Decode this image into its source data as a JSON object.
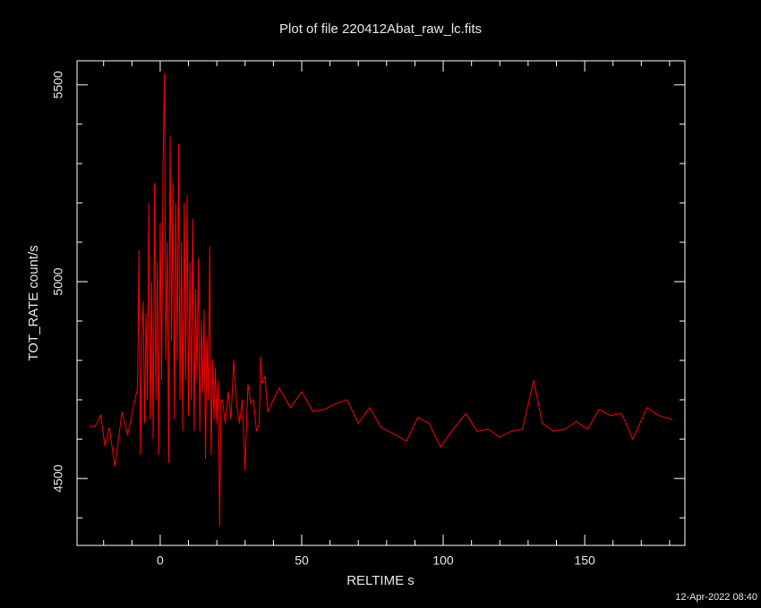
{
  "chart_data": {
    "type": "line",
    "title": "Plot of file 220412Abat_raw_lc.fits",
    "x_label": "RELTIME  s",
    "y_label": "TOT_RATE  count/s",
    "annotation": "12-Apr-2022 08:40",
    "color": "#ff0000",
    "x": [
      -25,
      -23,
      -21,
      -19.5,
      -18,
      -16,
      -13.5,
      -11.5,
      -9.5,
      -8,
      -7.5,
      -7,
      -6.5,
      -6,
      -5.5,
      -5,
      -4.5,
      -4,
      -3.5,
      -3,
      -2.5,
      -2,
      -1.5,
      -1,
      -0.5,
      0,
      0.5,
      1,
      1.5,
      2,
      2.5,
      3,
      3.5,
      4,
      4.5,
      5,
      5.5,
      6,
      6.5,
      7,
      7.5,
      8,
      8.5,
      9,
      9.5,
      10,
      10.5,
      11,
      11.5,
      12,
      12.5,
      13,
      13.5,
      14,
      14.5,
      15,
      15.5,
      16,
      16.5,
      17,
      17.5,
      18,
      18.5,
      19,
      19.5,
      20,
      20.5,
      21,
      21.5,
      22,
      23,
      24,
      25,
      26,
      27,
      28,
      29,
      30,
      30.5,
      31,
      32,
      33,
      34,
      35,
      35.5,
      36,
      37,
      38,
      42,
      46,
      50,
      54,
      58,
      62,
      66,
      70,
      74,
      78,
      82,
      87,
      91,
      95,
      99,
      103,
      108,
      112,
      116,
      120,
      124,
      128,
      132,
      135,
      139,
      143,
      147,
      151,
      155,
      159,
      163,
      167,
      172,
      176,
      181
    ],
    "values": [
      4632,
      4632,
      4660,
      4582,
      4630,
      4530,
      4670,
      4610,
      4680,
      4730,
      5080,
      4560,
      4850,
      4950,
      4640,
      4920,
      4700,
      5200,
      4650,
      5000,
      4600,
      5250,
      4700,
      5050,
      4560,
      5150,
      4750,
      5300,
      5530,
      4800,
      5100,
      4540,
      5370,
      4850,
      5250,
      4650,
      5200,
      4800,
      5350,
      4700,
      5100,
      4620,
      5200,
      4750,
      5220,
      4660,
      5050,
      4700,
      5160,
      4620,
      4980,
      4750,
      5060,
      4620,
      4900,
      4720,
      4930,
      4550,
      4860,
      4700,
      5090,
      4560,
      4800,
      4650,
      4780,
      4640,
      4750,
      4380,
      4700,
      4700,
      4640,
      4720,
      4650,
      4800,
      4690,
      4640,
      4700,
      4520,
      4640,
      4740,
      4690,
      4700,
      4620,
      4640,
      4810,
      4740,
      4760,
      4670,
      4730,
      4680,
      4720,
      4670,
      4675,
      4690,
      4700,
      4640,
      4680,
      4630,
      4615,
      4595,
      4655,
      4640,
      4580,
      4620,
      4665,
      4620,
      4625,
      4605,
      4620,
      4625,
      4750,
      4640,
      4620,
      4625,
      4645,
      4625,
      4675,
      4660,
      4665,
      4600,
      4680,
      4660,
      4650
    ],
    "xlim": [
      -29.4,
      185.4
    ],
    "ylim": [
      4330,
      5561
    ],
    "xticks": [
      0,
      50,
      100,
      150
    ],
    "yticks": [
      4500,
      5000,
      5500
    ],
    "xticks_minor": [
      -20,
      -10,
      10,
      20,
      30,
      40,
      60,
      70,
      80,
      90,
      110,
      120,
      130,
      140,
      160,
      170,
      180
    ],
    "yticks_minor": [
      4400,
      4600,
      4700,
      4800,
      4900,
      5100,
      5200,
      5300,
      5400
    ],
    "grid": false
  }
}
